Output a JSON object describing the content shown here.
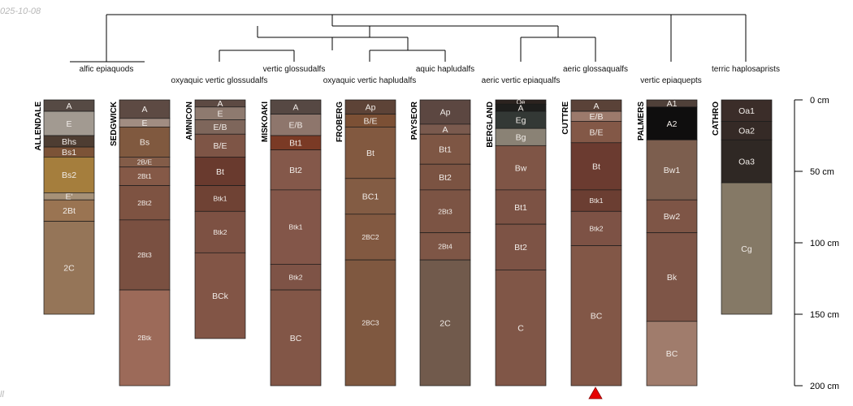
{
  "meta": {
    "date_stamp": "025-10-08",
    "corner_mark": "ll"
  },
  "depth_axis": {
    "unit": "cm",
    "max_depth": 200,
    "ticks": [
      0,
      50,
      100,
      150,
      200
    ],
    "tick_labels": [
      "0 cm",
      "50 cm",
      "100 cm",
      "150 cm",
      "200 cm"
    ]
  },
  "taxa_labels": [
    "alfic epiaquods",
    "vertic glossudalfs",
    "oxyaquic vertic glossudalfs",
    "aquic hapludalfs",
    "oxyaquic vertic hapludalfs",
    "aeric glossaqualfs",
    "aeric vertic epiaqualfs",
    "vertic epiaquepts",
    "terric haplosaprists"
  ],
  "profiles": [
    {
      "name": "ALLENDALE",
      "bottom": 150,
      "horizons": [
        {
          "name": "A",
          "top": 0,
          "bottom": 8,
          "color": "#564a44"
        },
        {
          "name": "E",
          "top": 8,
          "bottom": 25,
          "color": "#a29a91"
        },
        {
          "name": "Bhs",
          "top": 25,
          "bottom": 33,
          "color": "#4e3d32"
        },
        {
          "name": "Bs1",
          "top": 33,
          "bottom": 40,
          "color": "#7c5337"
        },
        {
          "name": "Bs2",
          "top": 40,
          "bottom": 65,
          "color": "#a57e3d"
        },
        {
          "name": "E'",
          "top": 65,
          "bottom": 70,
          "color": "#a69178"
        },
        {
          "name": "2Bt",
          "top": 70,
          "bottom": 85,
          "color": "#9a7452"
        },
        {
          "name": "2C",
          "top": 85,
          "bottom": 150,
          "color": "#957558"
        }
      ]
    },
    {
      "name": "SEDGWICK",
      "bottom": 200,
      "horizons": [
        {
          "name": "A",
          "top": 0,
          "bottom": 13,
          "color": "#5d4a43"
        },
        {
          "name": "E",
          "top": 13,
          "bottom": 19,
          "color": "#a18d82"
        },
        {
          "name": "Bs",
          "top": 19,
          "bottom": 40,
          "color": "#80593f"
        },
        {
          "name": "2B/E",
          "top": 40,
          "bottom": 47,
          "color": "#835c48"
        },
        {
          "name": "2Bt1",
          "top": 47,
          "bottom": 60,
          "color": "#855947"
        },
        {
          "name": "2Bt2",
          "top": 60,
          "bottom": 84,
          "color": "#7e5342"
        },
        {
          "name": "2Bt3",
          "top": 84,
          "bottom": 133,
          "color": "#7a5041"
        },
        {
          "name": "2Btk",
          "top": 133,
          "bottom": 200,
          "color": "#9c6a59"
        }
      ]
    },
    {
      "name": "AMNICON",
      "bottom": 167,
      "horizons": [
        {
          "name": "A",
          "top": 0,
          "bottom": 5,
          "color": "#5d4a43"
        },
        {
          "name": "E",
          "top": 5,
          "bottom": 14,
          "color": "#8e7a6f"
        },
        {
          "name": "E/B",
          "top": 14,
          "bottom": 24,
          "color": "#7e665b"
        },
        {
          "name": "B/E",
          "top": 24,
          "bottom": 40,
          "color": "#7e5546"
        },
        {
          "name": "Bt",
          "top": 40,
          "bottom": 60,
          "color": "#693a2e"
        },
        {
          "name": "Btk1",
          "top": 60,
          "bottom": 78,
          "color": "#6f4234"
        },
        {
          "name": "Btk2",
          "top": 78,
          "bottom": 107,
          "color": "#7d5143"
        },
        {
          "name": "BCk",
          "top": 107,
          "bottom": 167,
          "color": "#825546"
        }
      ]
    },
    {
      "name": "MISKOAKI",
      "bottom": 200,
      "horizons": [
        {
          "name": "A",
          "top": 0,
          "bottom": 10,
          "color": "#564843"
        },
        {
          "name": "E/B",
          "top": 10,
          "bottom": 25,
          "color": "#8e766c"
        },
        {
          "name": "Bt1",
          "top": 25,
          "bottom": 35,
          "color": "#7a3a25"
        },
        {
          "name": "Bt2",
          "top": 35,
          "bottom": 63,
          "color": "#84584a"
        },
        {
          "name": "Btk1",
          "top": 63,
          "bottom": 115,
          "color": "#835649"
        },
        {
          "name": "Btk2",
          "top": 115,
          "bottom": 133,
          "color": "#7e5346"
        },
        {
          "name": "BC",
          "top": 133,
          "bottom": 200,
          "color": "#825647"
        }
      ]
    },
    {
      "name": "FROBERG",
      "bottom": 200,
      "horizons": [
        {
          "name": "Ap",
          "top": 0,
          "bottom": 10,
          "color": "#5d4337"
        },
        {
          "name": "B/E",
          "top": 10,
          "bottom": 19,
          "color": "#7c5035"
        },
        {
          "name": "Bt",
          "top": 19,
          "bottom": 55,
          "color": "#825940"
        },
        {
          "name": "BC1",
          "top": 55,
          "bottom": 80,
          "color": "#835c44"
        },
        {
          "name": "2BC2",
          "top": 80,
          "bottom": 112,
          "color": "#825941"
        },
        {
          "name": "2BC3",
          "top": 112,
          "bottom": 200,
          "color": "#7f5840"
        }
      ]
    },
    {
      "name": "PAYSEOR",
      "bottom": 200,
      "horizons": [
        {
          "name": "Ap",
          "top": 0,
          "bottom": 17,
          "color": "#5c4741"
        },
        {
          "name": "A",
          "top": 17,
          "bottom": 24,
          "color": "#7a5a4e"
        },
        {
          "name": "Bt1",
          "top": 24,
          "bottom": 45,
          "color": "#7e5644"
        },
        {
          "name": "Bt2",
          "top": 45,
          "bottom": 63,
          "color": "#7b5342"
        },
        {
          "name": "2Bt3",
          "top": 63,
          "bottom": 93,
          "color": "#7c5444"
        },
        {
          "name": "2Bt4",
          "top": 93,
          "bottom": 112,
          "color": "#7e5646"
        },
        {
          "name": "2C",
          "top": 112,
          "bottom": 200,
          "color": "#715a4c"
        }
      ]
    },
    {
      "name": "BERGLAND",
      "bottom": 200,
      "horizons": [
        {
          "name": "Oe",
          "top": 0,
          "bottom": 3,
          "color": "#2c231f"
        },
        {
          "name": "A",
          "top": 3,
          "bottom": 8,
          "color": "#1e1e1c"
        },
        {
          "name": "Eg",
          "top": 8,
          "bottom": 20,
          "color": "#333835"
        },
        {
          "name": "Bg",
          "top": 20,
          "bottom": 32,
          "color": "#8a8275"
        },
        {
          "name": "Bw",
          "top": 32,
          "bottom": 63,
          "color": "#7f5546"
        },
        {
          "name": "Bt1",
          "top": 63,
          "bottom": 87,
          "color": "#7c5244"
        },
        {
          "name": "Bt2",
          "top": 87,
          "bottom": 119,
          "color": "#7d5345"
        },
        {
          "name": "C",
          "top": 119,
          "bottom": 200,
          "color": "#805647"
        }
      ]
    },
    {
      "name": "CUTTRE",
      "bottom": 200,
      "horizons": [
        {
          "name": "A",
          "top": 0,
          "bottom": 8,
          "color": "#5a4238"
        },
        {
          "name": "E/B",
          "top": 8,
          "bottom": 15,
          "color": "#9c7a6c"
        },
        {
          "name": "B/E",
          "top": 15,
          "bottom": 30,
          "color": "#835847"
        },
        {
          "name": "Bt",
          "top": 30,
          "bottom": 63,
          "color": "#6b3b30"
        },
        {
          "name": "Btk1",
          "top": 63,
          "bottom": 78,
          "color": "#6b3e32"
        },
        {
          "name": "Btk2",
          "top": 78,
          "bottom": 102,
          "color": "#7d5245"
        },
        {
          "name": "BC",
          "top": 102,
          "bottom": 200,
          "color": "#825747"
        }
      ]
    },
    {
      "name": "PALMERS",
      "bottom": 200,
      "horizons": [
        {
          "name": "A1",
          "top": 0,
          "bottom": 5,
          "color": "#4f4039"
        },
        {
          "name": "A2",
          "top": 5,
          "bottom": 28,
          "color": "#0f0e0e"
        },
        {
          "name": "Bw1",
          "top": 28,
          "bottom": 70,
          "color": "#7c5e4e"
        },
        {
          "name": "Bw2",
          "top": 70,
          "bottom": 93,
          "color": "#7e5546"
        },
        {
          "name": "Bk",
          "top": 93,
          "bottom": 155,
          "color": "#7e5547"
        },
        {
          "name": "BC",
          "top": 155,
          "bottom": 200,
          "color": "#a07c6c"
        }
      ]
    },
    {
      "name": "CATHRO",
      "bottom": 150,
      "horizons": [
        {
          "name": "Oa1",
          "top": 0,
          "bottom": 15,
          "color": "#3b2d29"
        },
        {
          "name": "Oa2",
          "top": 15,
          "bottom": 28,
          "color": "#352a26"
        },
        {
          "name": "Oa3",
          "top": 28,
          "bottom": 58,
          "color": "#2f2824"
        },
        {
          "name": "Cg",
          "top": 58,
          "bottom": 150,
          "color": "#857966"
        }
      ]
    }
  ]
}
